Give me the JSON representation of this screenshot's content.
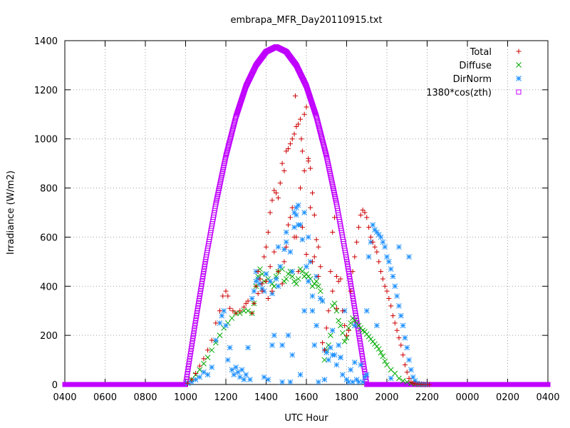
{
  "chart_data": {
    "type": "scatter",
    "title": "embrapa_MFR_Day20110915.txt",
    "xlabel": "UTC Hour",
    "ylabel": "Irradiance (W/m2)",
    "ylim": [
      0,
      1400
    ],
    "yticks": [
      0,
      200,
      400,
      600,
      800,
      1000,
      1200,
      1400
    ],
    "xlim": [
      4,
      28
    ],
    "xticks": [
      {
        "x": 4,
        "label": "0400"
      },
      {
        "x": 6,
        "label": "0600"
      },
      {
        "x": 8,
        "label": "0800"
      },
      {
        "x": 10,
        "label": "1000"
      },
      {
        "x": 12,
        "label": "1200"
      },
      {
        "x": 14,
        "label": "1400"
      },
      {
        "x": 16,
        "label": "1600"
      },
      {
        "x": 18,
        "label": "1800"
      },
      {
        "x": 20,
        "label": "2000"
      },
      {
        "x": 22,
        "label": "2200"
      },
      {
        "x": 24,
        "label": "0000"
      },
      {
        "x": 26,
        "label": "0200"
      },
      {
        "x": 28,
        "label": "0400"
      }
    ],
    "grid": true,
    "legend_position": "top-right",
    "series": [
      {
        "name": "Total",
        "color": "#cc0000",
        "marker": "plus",
        "x": [
          10.1,
          10.3,
          10.5,
          10.7,
          10.9,
          11.1,
          11.3,
          11.5,
          11.7,
          11.85,
          12.0,
          12.1,
          12.2,
          12.35,
          12.5,
          12.7,
          12.9,
          13.0,
          13.1,
          13.3,
          13.4,
          13.5,
          13.6,
          13.7,
          13.8,
          13.9,
          14.0,
          14.1,
          14.2,
          14.3,
          14.4,
          14.5,
          14.6,
          14.7,
          14.8,
          14.9,
          15.0,
          15.1,
          15.2,
          15.3,
          15.4,
          15.5,
          15.6,
          15.7,
          15.8,
          15.9,
          16.0,
          16.1,
          16.2,
          16.3,
          16.4,
          16.5,
          16.6,
          16.7,
          16.8,
          16.9,
          17.0,
          17.1,
          17.2,
          17.3,
          17.4,
          17.5,
          17.6,
          17.7,
          17.8,
          17.9,
          18.0,
          18.1,
          18.2,
          18.3,
          18.4,
          18.5,
          18.6,
          18.7,
          18.8,
          18.9,
          19.0,
          19.1,
          19.2,
          19.3,
          19.4,
          19.5,
          19.6,
          19.7,
          19.8,
          19.9,
          20.0,
          20.1,
          20.2,
          20.3,
          20.4,
          20.5,
          20.6,
          20.7,
          20.8,
          20.9,
          21.0,
          21.1,
          21.2,
          21.3,
          21.4,
          21.5,
          21.6,
          21.7,
          21.8,
          21.9,
          22.0,
          22.1,
          15.0,
          15.1,
          15.3,
          15.5,
          15.7,
          15.9,
          16.1,
          14.1,
          14.3,
          14.6,
          14.9,
          16.4,
          16.6,
          17.3,
          17.5,
          14.2,
          14.4,
          15.2,
          15.4,
          15.8,
          16.2,
          14.0,
          14.8,
          15.6,
          16.0,
          16.3,
          13.6,
          13.8,
          15.45,
          15.75
        ],
        "y": [
          5,
          20,
          45,
          75,
          105,
          140,
          180,
          250,
          300,
          360,
          380,
          360,
          310,
          300,
          290,
          300,
          315,
          330,
          340,
          290,
          330,
          400,
          460,
          430,
          380,
          520,
          560,
          620,
          700,
          750,
          790,
          780,
          760,
          820,
          900,
          870,
          950,
          960,
          980,
          1000,
          1020,
          1050,
          1060,
          1080,
          950,
          1100,
          1130,
          920,
          880,
          780,
          690,
          590,
          560,
          480,
          170,
          140,
          230,
          300,
          460,
          620,
          680,
          440,
          420,
          430,
          300,
          240,
          200,
          220,
          380,
          460,
          520,
          580,
          640,
          690,
          710,
          700,
          680,
          640,
          600,
          580,
          560,
          540,
          500,
          460,
          430,
          400,
          380,
          350,
          320,
          280,
          250,
          220,
          190,
          160,
          120,
          80,
          50,
          25,
          10,
          5,
          3,
          2,
          1,
          1,
          0,
          0,
          0,
          0,
          560,
          650,
          720,
          600,
          800,
          870,
          910,
          350,
          380,
          460,
          500,
          520,
          440,
          380,
          310,
          480,
          540,
          680,
          600,
          640,
          720,
          420,
          410,
          460,
          530,
          500,
          370,
          410,
          1175,
          1000
        ],
        "y_note": ""
      },
      {
        "name": "Diffuse",
        "color": "#00aa00",
        "marker": "x",
        "x": [
          10.1,
          10.3,
          10.5,
          10.7,
          10.9,
          11.1,
          11.3,
          11.5,
          11.7,
          11.9,
          12.1,
          12.3,
          12.5,
          12.7,
          12.9,
          13.1,
          13.3,
          13.4,
          13.5,
          13.6,
          13.7,
          13.8,
          13.9,
          14.0,
          14.1,
          14.2,
          14.3,
          14.4,
          14.5,
          14.6,
          14.7,
          14.8,
          14.9,
          15.0,
          15.1,
          15.2,
          15.3,
          15.4,
          15.5,
          15.6,
          15.7,
          15.8,
          15.9,
          16.0,
          16.1,
          16.2,
          16.3,
          16.4,
          16.5,
          16.6,
          16.7,
          16.8,
          16.9,
          17.0,
          17.1,
          17.2,
          17.3,
          17.4,
          17.5,
          17.6,
          17.7,
          17.8,
          17.9,
          18.0,
          18.1,
          18.2,
          18.3,
          18.4,
          18.5,
          18.6,
          18.7,
          18.8,
          18.9,
          19.0,
          19.1,
          19.2,
          19.3,
          19.4,
          19.5,
          19.6,
          19.7,
          19.8,
          19.9,
          20.0,
          20.2,
          20.4,
          20.6,
          20.8,
          21.0,
          21.2,
          21.4,
          21.6,
          21.8,
          22.0
        ],
        "y": [
          5,
          20,
          40,
          60,
          85,
          110,
          140,
          170,
          200,
          230,
          250,
          270,
          290,
          290,
          300,
          300,
          290,
          330,
          400,
          440,
          470,
          450,
          420,
          450,
          430,
          420,
          410,
          400,
          440,
          460,
          480,
          470,
          420,
          430,
          450,
          460,
          440,
          420,
          410,
          430,
          470,
          460,
          440,
          450,
          440,
          430,
          400,
          410,
          420,
          400,
          380,
          340,
          100,
          140,
          160,
          200,
          320,
          330,
          300,
          260,
          240,
          210,
          175,
          190,
          230,
          250,
          270,
          260,
          250,
          240,
          230,
          220,
          215,
          205,
          195,
          185,
          175,
          165,
          155,
          145,
          130,
          115,
          95,
          80,
          60,
          45,
          25,
          15,
          10,
          5,
          2,
          0,
          0,
          0
        ],
        "y_note": ""
      },
      {
        "name": "DirNorm",
        "color": "#1e90ff",
        "marker": "star",
        "x": [
          10.1,
          10.3,
          10.5,
          10.7,
          10.9,
          11.1,
          11.3,
          11.5,
          11.7,
          11.8,
          11.9,
          12.0,
          12.1,
          12.2,
          12.3,
          12.4,
          12.5,
          12.6,
          12.7,
          12.8,
          12.9,
          13.0,
          13.1,
          13.2,
          13.3,
          13.4,
          13.5,
          13.6,
          13.7,
          13.8,
          13.9,
          14.0,
          14.1,
          14.2,
          14.3,
          14.4,
          14.5,
          14.6,
          14.7,
          14.8,
          14.9,
          15.0,
          15.1,
          15.2,
          15.3,
          15.4,
          15.5,
          15.6,
          15.7,
          15.8,
          15.9,
          16.0,
          16.1,
          16.2,
          16.3,
          16.4,
          16.5,
          16.6,
          16.7,
          16.8,
          16.9,
          17.0,
          17.1,
          17.2,
          17.3,
          17.4,
          17.5,
          17.6,
          17.7,
          17.8,
          17.9,
          18.0,
          18.1,
          18.2,
          18.3,
          18.4,
          18.5,
          18.6,
          18.7,
          18.8,
          18.9,
          19.0,
          19.1,
          19.2,
          19.3,
          19.4,
          19.5,
          19.6,
          19.7,
          19.8,
          19.9,
          20.0,
          20.1,
          20.2,
          20.3,
          20.4,
          20.5,
          20.6,
          20.7,
          20.8,
          20.9,
          21.0,
          21.1,
          21.2,
          21.3,
          21.4,
          21.5,
          21.6,
          21.7,
          21.8,
          21.9,
          22.0,
          14.3,
          14.6,
          15.0,
          15.4,
          15.7,
          16.1,
          16.5,
          13.5,
          13.9,
          14.8,
          15.2,
          15.9,
          16.3,
          16.9,
          17.3,
          17.7,
          18.4,
          19.0,
          19.5,
          20.2,
          20.6,
          21.1,
          15.3,
          15.5,
          15.6
        ],
        "y": [
          5,
          10,
          20,
          30,
          50,
          40,
          70,
          180,
          250,
          280,
          300,
          240,
          100,
          150,
          60,
          40,
          70,
          50,
          30,
          60,
          20,
          40,
          150,
          20,
          350,
          380,
          460,
          430,
          410,
          390,
          30,
          450,
          20,
          420,
          370,
          200,
          430,
          400,
          480,
          10,
          550,
          620,
          200,
          10,
          120,
          700,
          720,
          650,
          40,
          590,
          300,
          480,
          420,
          500,
          360,
          160,
          240,
          10,
          350,
          340,
          20,
          130,
          100,
          150,
          220,
          120,
          80,
          160,
          110,
          40,
          300,
          20,
          10,
          60,
          10,
          90,
          20,
          10,
          80,
          10,
          30,
          40,
          520,
          580,
          650,
          630,
          620,
          610,
          600,
          580,
          560,
          520,
          500,
          470,
          440,
          400,
          360,
          320,
          280,
          240,
          190,
          150,
          100,
          60,
          30,
          15,
          5,
          2,
          1,
          0,
          0,
          0,
          160,
          560,
          580,
          640,
          650,
          600,
          440,
          420,
          380,
          160,
          540,
          700,
          300,
          140,
          120,
          110,
          240,
          300,
          240,
          25,
          560,
          520,
          460,
          690,
          730
        ],
        "y_note": ""
      },
      {
        "name": "1380*cos(zth)",
        "color": "#c000ff",
        "marker": "square",
        "model": "1380*cos(zenith); 0 outside daylight",
        "x": [
          4,
          6,
          8,
          9,
          10,
          10.5,
          11,
          11.5,
          12,
          12.5,
          13,
          13.5,
          14,
          14.5,
          15,
          15.5,
          16,
          16.5,
          17,
          17.5,
          18,
          18.5,
          19,
          19.5,
          20,
          20.5,
          21,
          21.5,
          22,
          22.5,
          23,
          24,
          26,
          28
        ],
        "y": [
          0,
          0,
          0,
          0,
          0,
          260,
          510,
          735,
          930,
          1090,
          1215,
          1300,
          1355,
          1375,
          1355,
          1300,
          1215,
          1090,
          930,
          735,
          510,
          260,
          0,
          0,
          0,
          0,
          0,
          0,
          0,
          0,
          0,
          0,
          0,
          0
        ]
      }
    ]
  }
}
